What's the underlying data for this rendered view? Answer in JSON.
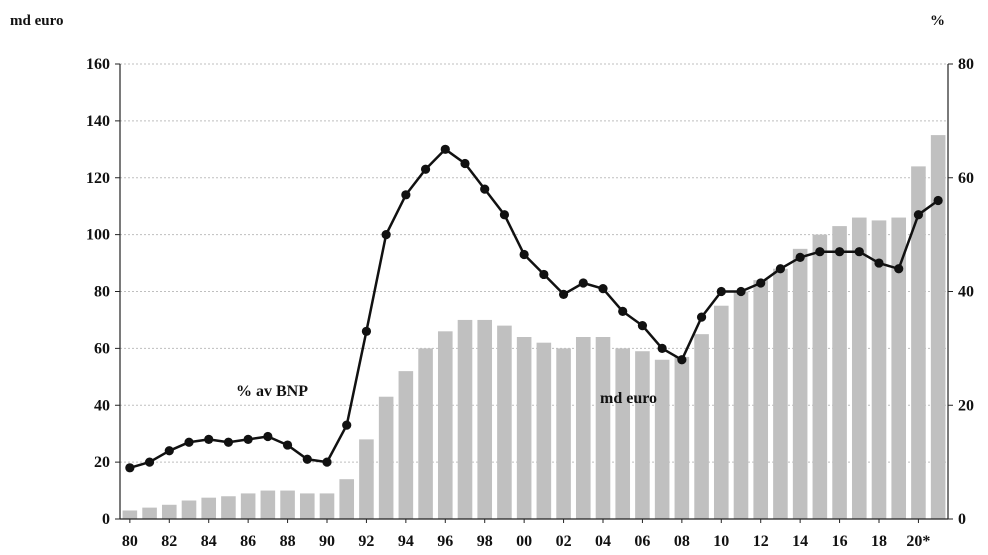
{
  "chart_data": {
    "type": "bar",
    "left_unit_label": "md euro",
    "right_unit_label": "%",
    "categories": [
      "80",
      "81",
      "82",
      "83",
      "84",
      "85",
      "86",
      "87",
      "88",
      "89",
      "90",
      "91",
      "92",
      "93",
      "94",
      "95",
      "96",
      "97",
      "98",
      "99",
      "00",
      "01",
      "02",
      "03",
      "04",
      "05",
      "06",
      "07",
      "08",
      "09",
      "10",
      "11",
      "12",
      "13",
      "14",
      "15",
      "16",
      "17",
      "18",
      "19",
      "20*",
      "21"
    ],
    "x_tick_labels": [
      "80",
      "82",
      "84",
      "86",
      "88",
      "90",
      "92",
      "94",
      "96",
      "98",
      "00",
      "02",
      "04",
      "06",
      "08",
      "10",
      "12",
      "14",
      "16",
      "18",
      "20*"
    ],
    "y_left": {
      "min": 0,
      "max": 160,
      "ticks": [
        "0",
        "20",
        "40",
        "60",
        "80",
        "100",
        "120",
        "140",
        "160"
      ]
    },
    "y_right": {
      "min": 0,
      "max": 80,
      "ticks": [
        "0",
        "20",
        "40",
        "60",
        "80"
      ]
    },
    "series": [
      {
        "name": "md euro",
        "type": "bar",
        "axis": "left",
        "color": "#c0c0c0",
        "values": [
          3,
          4,
          5,
          6.5,
          7.5,
          8,
          9,
          10,
          10,
          9,
          9,
          14,
          28,
          43,
          52,
          60,
          66,
          70,
          70,
          68,
          64,
          62,
          60,
          64,
          64,
          60,
          59,
          56,
          57,
          65,
          75,
          80,
          84,
          88,
          95,
          100,
          103,
          106,
          105,
          106,
          124,
          135
        ]
      },
      {
        "name": "% av BNP",
        "type": "line",
        "axis": "right",
        "color": "#111111",
        "values": [
          9,
          10,
          12,
          13.5,
          14,
          13.5,
          14,
          14.5,
          13,
          10.5,
          10,
          16.5,
          33,
          50,
          57,
          61.5,
          65,
          62.5,
          58,
          53.5,
          46.5,
          43,
          39.5,
          41.5,
          40.5,
          36.5,
          34,
          30,
          28,
          35.5,
          40,
          40,
          41.5,
          44,
          46,
          47,
          47,
          47,
          45,
          44,
          53.5,
          56
        ]
      }
    ],
    "annotations": [
      "% av BNP",
      "md euro"
    ],
    "grid": true
  }
}
